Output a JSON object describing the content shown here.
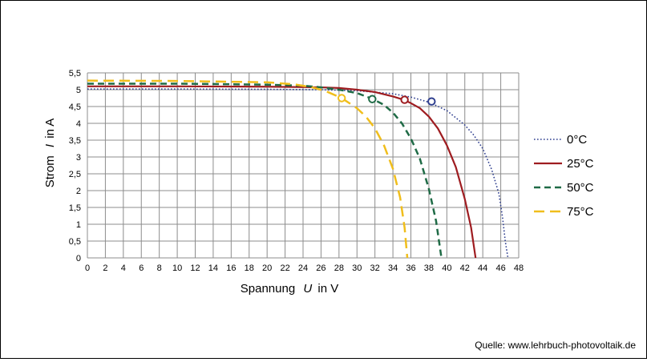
{
  "chart_data": {
    "type": "line",
    "xlabel": {
      "prefix": "Spannung",
      "symbol": "U",
      "suffix": "in V"
    },
    "ylabel": {
      "prefix": "Strom",
      "symbol": "I",
      "suffix": "in A"
    },
    "xlim": [
      0,
      48
    ],
    "ylim": [
      0,
      5.5
    ],
    "x_ticks": [
      "0",
      "2",
      "4",
      "6",
      "8",
      "10",
      "12",
      "14",
      "16",
      "18",
      "20",
      "22",
      "24",
      "26",
      "28",
      "30",
      "32",
      "34",
      "36",
      "38",
      "40",
      "42",
      "44",
      "46",
      "48"
    ],
    "y_ticks": [
      "0",
      "0,5",
      "1",
      "1,5",
      "2",
      "2,5",
      "3",
      "3,5",
      "4",
      "4,5",
      "5",
      "5,5"
    ],
    "grid": true,
    "legend_position": "right",
    "source": "Quelle: www.lehrbuch-photovoltaik.de",
    "series": [
      {
        "name": "0°C",
        "color": "#2f3f8f",
        "dash": "dotted",
        "points": [
          [
            0,
            5.02
          ],
          [
            10,
            5.02
          ],
          [
            20,
            5.01
          ],
          [
            26,
            5.0
          ],
          [
            30,
            4.97
          ],
          [
            34,
            4.88
          ],
          [
            36,
            4.78
          ],
          [
            38,
            4.63
          ],
          [
            40,
            4.38
          ],
          [
            42,
            3.95
          ],
          [
            43,
            3.65
          ],
          [
            44,
            3.25
          ],
          [
            45,
            2.62
          ],
          [
            45.8,
            1.9
          ],
          [
            46.2,
            1.2
          ],
          [
            46.5,
            0.5
          ],
          [
            46.8,
            0
          ]
        ],
        "mpp": [
          38.3,
          4.65
        ]
      },
      {
        "name": "25°C",
        "color": "#9e1c20",
        "dash": "solid",
        "points": [
          [
            0,
            5.1
          ],
          [
            10,
            5.1
          ],
          [
            20,
            5.09
          ],
          [
            26,
            5.07
          ],
          [
            28,
            5.05
          ],
          [
            30,
            5.0
          ],
          [
            32,
            4.93
          ],
          [
            34,
            4.8
          ],
          [
            35.2,
            4.7
          ],
          [
            36,
            4.6
          ],
          [
            37,
            4.45
          ],
          [
            38,
            4.2
          ],
          [
            39,
            3.85
          ],
          [
            40,
            3.35
          ],
          [
            41,
            2.7
          ],
          [
            42,
            1.75
          ],
          [
            42.7,
            0.9
          ],
          [
            43.2,
            0
          ]
        ],
        "mpp": [
          35.3,
          4.7
        ]
      },
      {
        "name": "50°C",
        "color": "#1f6b46",
        "dash": "dashed",
        "points": [
          [
            0,
            5.18
          ],
          [
            10,
            5.18
          ],
          [
            20,
            5.15
          ],
          [
            24,
            5.12
          ],
          [
            26,
            5.07
          ],
          [
            28,
            5.0
          ],
          [
            30,
            4.9
          ],
          [
            31.7,
            4.73
          ],
          [
            33,
            4.55
          ],
          [
            34,
            4.32
          ],
          [
            35,
            4.0
          ],
          [
            36,
            3.55
          ],
          [
            37,
            2.95
          ],
          [
            38,
            2.05
          ],
          [
            38.8,
            1.1
          ],
          [
            39.4,
            0
          ]
        ],
        "mpp": [
          31.7,
          4.72
        ]
      },
      {
        "name": "75°C",
        "color": "#f0be1c",
        "dash": "long-dashed",
        "points": [
          [
            0,
            5.27
          ],
          [
            10,
            5.26
          ],
          [
            20,
            5.22
          ],
          [
            23,
            5.16
          ],
          [
            25,
            5.07
          ],
          [
            26.5,
            4.96
          ],
          [
            28.3,
            4.75
          ],
          [
            30,
            4.45
          ],
          [
            31,
            4.2
          ],
          [
            32,
            3.85
          ],
          [
            33,
            3.35
          ],
          [
            34,
            2.65
          ],
          [
            34.8,
            1.8
          ],
          [
            35.3,
            0.9
          ],
          [
            35.6,
            0
          ]
        ],
        "mpp": [
          28.3,
          4.75
        ]
      }
    ]
  }
}
